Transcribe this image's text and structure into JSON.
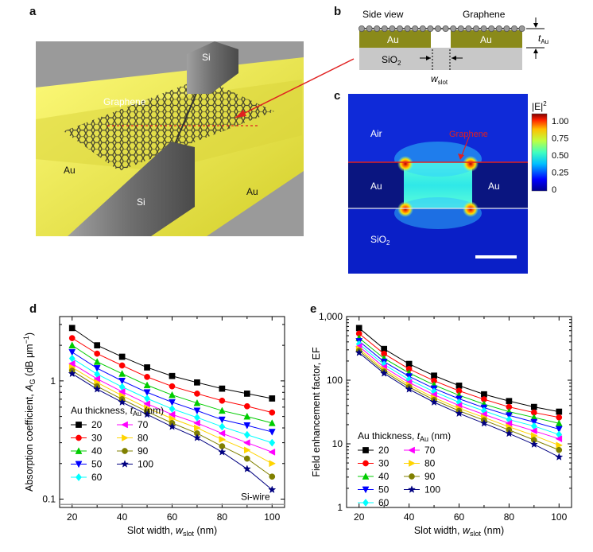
{
  "panels": {
    "a": {
      "letter": "a",
      "labels": {
        "si_top": "Si",
        "si_bottom": "Si",
        "graphene": "Graphene",
        "au_left": "Au",
        "au_right": "Au"
      },
      "colors": {
        "gold": "#e6e04a",
        "silicon": "#7a7a7a",
        "graphene": "#333333",
        "arrow": "#e02020"
      }
    },
    "b": {
      "letter": "b",
      "labels": {
        "side_view": "Side view",
        "graphene": "Graphene",
        "au_left": "Au",
        "au_right": "Au",
        "sio2": "SiO",
        "sio2_sub": "2",
        "t": "t",
        "t_sub": "Au",
        "w": "w",
        "w_sub": "slot"
      },
      "colors": {
        "au": "#8a8a1a",
        "sio2": "#c8c8c8"
      }
    },
    "c": {
      "letter": "c",
      "labels": {
        "air": "Air",
        "graphene": "Graphene",
        "au_left": "Au",
        "au_right": "Au",
        "sio2": "SiO",
        "sio2_sub": "2",
        "colorbar_title": "|E|",
        "colorbar_sup": "2"
      },
      "colorbar_ticks": [
        "1.00",
        "0.75",
        "0.50",
        "0.25",
        "0"
      ]
    },
    "d": {
      "letter": "d"
    },
    "e": {
      "letter": "e"
    }
  },
  "legend": {
    "title": "Au thickness, ",
    "title_var": "t",
    "title_sub": "Au",
    "title_unit": " (nm)"
  },
  "chart_data": [
    {
      "type": "line",
      "panel": "d",
      "xlabel": "Slot width, w_slot (nm)",
      "xlabel_parts": {
        "main": "Slot width, ",
        "var": "w",
        "sub": "slot",
        "unit": " (nm)"
      },
      "ylabel_parts": {
        "main": "Absorption coefficient, ",
        "var": "A",
        "sub": "G",
        "unit": " (dB μm",
        "sup": "−1",
        "close": ")"
      },
      "xlim": [
        15,
        105
      ],
      "ylim": [
        0.085,
        3.5
      ],
      "yscale": "log",
      "xticks": [
        20,
        40,
        60,
        80,
        100
      ],
      "yticks": [
        {
          "v": 0.1,
          "label": "0.1"
        },
        {
          "v": 1,
          "label": "1"
        }
      ],
      "reference_line": {
        "value": 0.09,
        "label": "Si-wire"
      },
      "x": [
        20,
        30,
        40,
        50,
        60,
        70,
        80,
        90,
        100
      ],
      "series": [
        {
          "name": "20",
          "color": "#000000",
          "marker": "square",
          "values": [
            2.8,
            2.0,
            1.6,
            1.3,
            1.1,
            0.97,
            0.86,
            0.78,
            0.71
          ]
        },
        {
          "name": "30",
          "color": "#ff0000",
          "marker": "circle",
          "values": [
            2.3,
            1.7,
            1.35,
            1.08,
            0.9,
            0.78,
            0.68,
            0.61,
            0.54
          ]
        },
        {
          "name": "40",
          "color": "#00cc00",
          "marker": "triangle-up",
          "values": [
            2.0,
            1.45,
            1.15,
            0.92,
            0.76,
            0.65,
            0.56,
            0.5,
            0.44
          ]
        },
        {
          "name": "50",
          "color": "#0000ff",
          "marker": "triangle-down",
          "values": [
            1.75,
            1.28,
            1.0,
            0.8,
            0.66,
            0.56,
            0.47,
            0.42,
            0.37
          ]
        },
        {
          "name": "60",
          "color": "#00ffff",
          "marker": "diamond",
          "values": [
            1.55,
            1.14,
            0.89,
            0.71,
            0.58,
            0.49,
            0.41,
            0.35,
            0.3
          ]
        },
        {
          "name": "70",
          "color": "#ff00ff",
          "marker": "triangle-left",
          "values": [
            1.4,
            1.04,
            0.81,
            0.64,
            0.52,
            0.44,
            0.36,
            0.3,
            0.25
          ]
        },
        {
          "name": "80",
          "color": "#ffd400",
          "marker": "triangle-right",
          "values": [
            1.3,
            0.97,
            0.75,
            0.59,
            0.48,
            0.4,
            0.32,
            0.26,
            0.2
          ]
        },
        {
          "name": "90",
          "color": "#808000",
          "marker": "circle",
          "values": [
            1.22,
            0.9,
            0.7,
            0.55,
            0.44,
            0.36,
            0.28,
            0.22,
            0.155
          ]
        },
        {
          "name": "100",
          "color": "#000080",
          "marker": "star",
          "values": [
            1.15,
            0.85,
            0.66,
            0.52,
            0.41,
            0.33,
            0.25,
            0.18,
            0.12
          ]
        }
      ]
    },
    {
      "type": "line",
      "panel": "e",
      "xlabel": "Slot width, w_slot (nm)",
      "xlabel_parts": {
        "main": "Slot width, ",
        "var": "w",
        "sub": "slot",
        "unit": " (nm)"
      },
      "ylabel_parts": {
        "main": "Field enhancement factor, EF",
        "var": "",
        "sub": "",
        "unit": "",
        "sup": "",
        "close": ""
      },
      "xlim": [
        15,
        105
      ],
      "ylim": [
        1,
        1000
      ],
      "yscale": "log",
      "xticks": [
        20,
        40,
        60,
        80,
        100
      ],
      "yticks": [
        {
          "v": 1,
          "label": "1"
        },
        {
          "v": 10,
          "label": "10"
        },
        {
          "v": 100,
          "label": "100"
        },
        {
          "v": 1000,
          "label": "1,000"
        }
      ],
      "x": [
        20,
        30,
        40,
        50,
        60,
        70,
        80,
        90,
        100
      ],
      "series": [
        {
          "name": "20",
          "color": "#000000",
          "marker": "square",
          "values": [
            660,
            310,
            180,
            118,
            82,
            60,
            47,
            38,
            32
          ]
        },
        {
          "name": "30",
          "color": "#ff0000",
          "marker": "circle",
          "values": [
            540,
            260,
            150,
            98,
            68,
            50,
            38,
            31,
            26
          ]
        },
        {
          "name": "40",
          "color": "#00cc00",
          "marker": "triangle-up",
          "values": [
            460,
            220,
            130,
            84,
            58,
            42,
            32,
            26,
            21
          ]
        },
        {
          "name": "50",
          "color": "#0000ff",
          "marker": "triangle-down",
          "values": [
            410,
            195,
            115,
            74,
            51,
            37,
            28,
            22,
            17
          ]
        },
        {
          "name": "60",
          "color": "#00ffff",
          "marker": "diamond",
          "values": [
            370,
            176,
            102,
            66,
            45,
            33,
            24,
            19,
            14
          ]
        },
        {
          "name": "70",
          "color": "#ff00ff",
          "marker": "triangle-left",
          "values": [
            340,
            160,
            92,
            59,
            40,
            29,
            21,
            16,
            12
          ]
        },
        {
          "name": "80",
          "color": "#ffd400",
          "marker": "triangle-right",
          "values": [
            310,
            147,
            84,
            53,
            36,
            26,
            18.5,
            13.5,
            9.5
          ]
        },
        {
          "name": "90",
          "color": "#808000",
          "marker": "circle",
          "values": [
            290,
            137,
            78,
            49,
            33,
            23.5,
            16.5,
            11.5,
            8
          ]
        },
        {
          "name": "100",
          "color": "#000080",
          "marker": "star",
          "values": [
            270,
            128,
            72,
            45,
            30,
            21,
            14.5,
            9.8,
            6.2
          ]
        }
      ]
    }
  ]
}
